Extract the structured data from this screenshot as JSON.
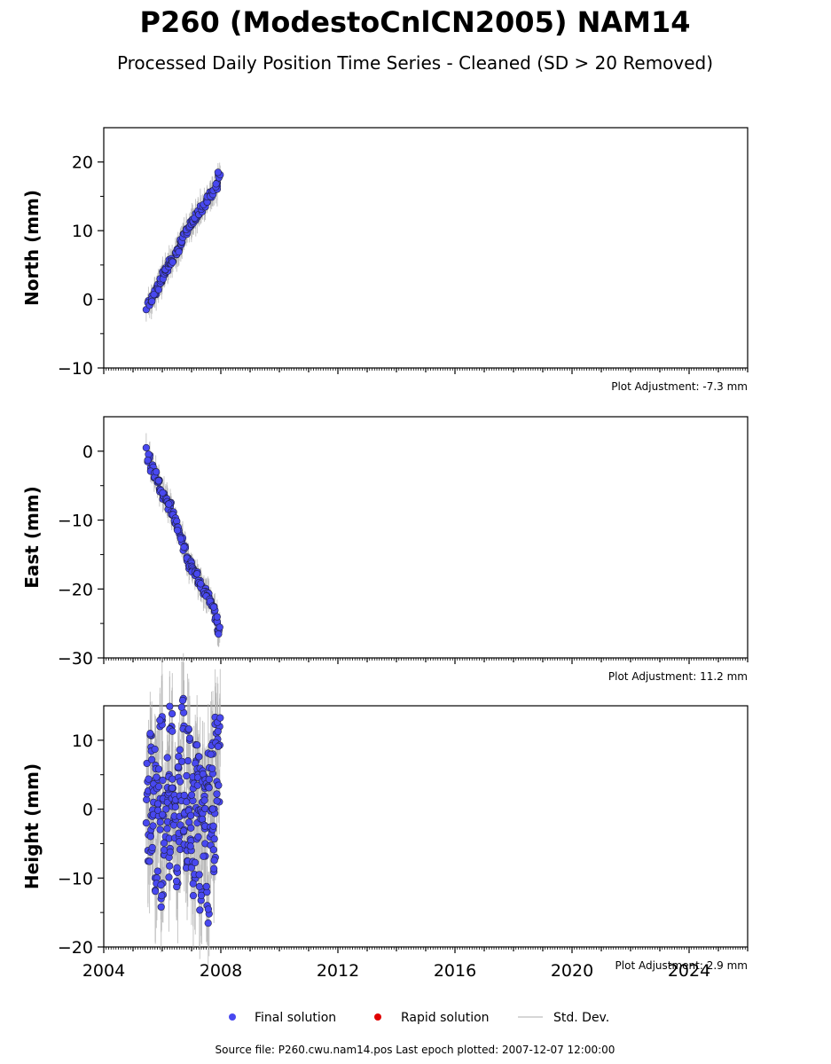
{
  "title": "P260 (ModestoCnlCN2005) NAM14",
  "subtitle": "Processed Daily Position Time Series - Cleaned (SD > 20 Removed)",
  "colors": {
    "final": "#4848f0",
    "rapid": "#e00000",
    "stddev": "#b0b0b0",
    "point_edge": "#202040"
  },
  "legend": {
    "final": "Final solution",
    "rapid": "Rapid solution",
    "stddev": "Std. Dev."
  },
  "source_note": "Source file: P260.cwu.nam14.pos  Last epoch plotted: 2007-12-07 12:00:00",
  "chart_data": [
    {
      "type": "scatter",
      "ylabel": "North (mm)",
      "xlim": [
        2004,
        2026
      ],
      "ylim": [
        -10,
        25
      ],
      "yticks": [
        -10,
        0,
        10,
        20
      ],
      "xticks": [
        2004,
        2008,
        2012,
        2016,
        2020,
        2024
      ],
      "show_xtick_labels": false,
      "adjustment": "Plot Adjustment: -7.3 mm",
      "series": [
        {
          "name": "Final solution",
          "x": [
            2005.45,
            2005.55,
            2005.65,
            2005.75,
            2005.85,
            2005.95,
            2006.05,
            2006.15,
            2006.25,
            2006.35,
            2006.45,
            2006.55,
            2006.65,
            2006.75,
            2006.85,
            2006.95,
            2007.05,
            2007.15,
            2007.25,
            2007.35,
            2007.45,
            2007.55,
            2007.65,
            2007.75,
            2007.85,
            2007.93
          ],
          "y": [
            -1.5,
            -0.5,
            0.0,
            1.0,
            1.8,
            2.5,
            3.5,
            4.5,
            5.3,
            5.5,
            6.5,
            7.3,
            8.5,
            9.5,
            10.0,
            10.8,
            11.3,
            12.0,
            12.8,
            13.2,
            14.0,
            14.6,
            15.3,
            15.8,
            16.5,
            18.0
          ]
        }
      ]
    },
    {
      "type": "scatter",
      "ylabel": "East (mm)",
      "xlim": [
        2004,
        2026
      ],
      "ylim": [
        -30,
        5
      ],
      "yticks": [
        -30,
        -20,
        -10,
        0
      ],
      "xticks": [
        2004,
        2008,
        2012,
        2016,
        2020,
        2024
      ],
      "show_xtick_labels": false,
      "adjustment": "Plot Adjustment: 11.2 mm",
      "series": [
        {
          "name": "Final solution",
          "x": [
            2005.45,
            2005.55,
            2005.65,
            2005.75,
            2005.85,
            2005.95,
            2006.05,
            2006.15,
            2006.25,
            2006.35,
            2006.45,
            2006.55,
            2006.65,
            2006.75,
            2006.85,
            2006.95,
            2007.05,
            2007.15,
            2007.25,
            2007.35,
            2007.45,
            2007.55,
            2007.65,
            2007.75,
            2007.85,
            2007.93
          ],
          "y": [
            0.5,
            -1.0,
            -2.5,
            -3.5,
            -4.5,
            -5.5,
            -6.5,
            -7.2,
            -8.0,
            -8.8,
            -10.0,
            -11.5,
            -12.8,
            -14.0,
            -15.5,
            -16.5,
            -17.0,
            -18.0,
            -18.8,
            -19.5,
            -20.3,
            -21.0,
            -22.0,
            -23.0,
            -24.5,
            -26.0
          ]
        }
      ]
    },
    {
      "type": "scatter",
      "ylabel": "Height (mm)",
      "xlim": [
        2004,
        2026
      ],
      "ylim": [
        -20,
        15
      ],
      "yticks": [
        -20,
        -10,
        0,
        10
      ],
      "xticks": [
        2004,
        2008,
        2012,
        2016,
        2020,
        2024
      ],
      "show_xtick_labels": true,
      "adjustment": "Plot Adjustment: 2.9 mm",
      "series": [
        {
          "name": "Final solution",
          "x": [
            2005.45,
            2005.5,
            2005.55,
            2005.6,
            2005.65,
            2005.7,
            2005.75,
            2005.8,
            2005.85,
            2005.9,
            2005.95,
            2006.0,
            2006.05,
            2006.1,
            2006.15,
            2006.2,
            2006.25,
            2006.3,
            2006.35,
            2006.4,
            2006.45,
            2006.5,
            2006.55,
            2006.6,
            2006.65,
            2006.7,
            2006.75,
            2006.8,
            2006.85,
            2006.9,
            2006.95,
            2007.0,
            2007.05,
            2007.1,
            2007.15,
            2007.2,
            2007.25,
            2007.3,
            2007.35,
            2007.4,
            2007.45,
            2007.5,
            2007.55,
            2007.6,
            2007.65,
            2007.7,
            2007.75,
            2007.8,
            2007.85,
            2007.9,
            2007.93
          ],
          "y": [
            -2,
            4,
            -6,
            9,
            -3,
            1,
            6,
            -10,
            3,
            -1,
            12,
            -13,
            2,
            -4,
            0,
            5,
            -7,
            12,
            3,
            -2,
            1,
            -9,
            6,
            -4,
            4,
            14,
            -3,
            2,
            -8,
            10,
            0,
            -6,
            3,
            -10,
            7,
            -2,
            5,
            -12,
            1,
            4,
            -5,
            3,
            -14,
            6,
            -3,
            8,
            0,
            -7,
            11,
            4,
            12
          ]
        }
      ]
    }
  ]
}
